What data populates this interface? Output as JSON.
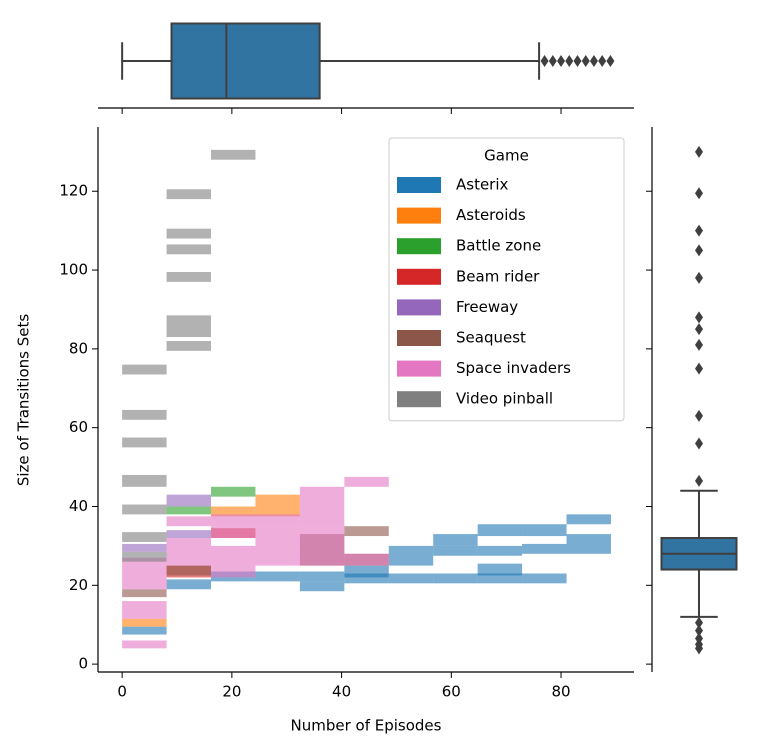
{
  "chart_data": [
    {
      "type": "hist2d",
      "xlabel": "Number of Episodes",
      "ylabel": "Size of Transitions Sets",
      "xlim": [
        -4.4,
        93.3
      ],
      "ylim": [
        -2,
        136.3
      ],
      "xticks": [
        0,
        20,
        40,
        60,
        80
      ],
      "yticks": [
        0,
        20,
        40,
        60,
        80,
        100,
        120
      ],
      "legend": {
        "title": "Game",
        "loc": "upper right"
      },
      "series": [
        {
          "name": "Asterix",
          "color": "#1f77b4",
          "cells": [
            {
              "x": [
                0,
                8.1
              ],
              "y": [
                7.5,
                9.5
              ]
            },
            {
              "x": [
                8.1,
                16.2
              ],
              "y": [
                19,
                21.5
              ]
            },
            {
              "x": [
                16.2,
                24.3
              ],
              "y": [
                21,
                23.5
              ]
            },
            {
              "x": [
                24.3,
                32.4
              ],
              "y": [
                21,
                23.5
              ]
            },
            {
              "x": [
                32.4,
                40.5
              ],
              "y": [
                21,
                23.5
              ]
            },
            {
              "x": [
                32.4,
                40.5
              ],
              "y": [
                18.5,
                21
              ]
            },
            {
              "x": [
                40.5,
                48.6
              ],
              "y": [
                22,
                25
              ]
            },
            {
              "x": [
                40.5,
                48.6
              ],
              "y": [
                20.5,
                23
              ]
            },
            {
              "x": [
                48.6,
                56.7
              ],
              "y": [
                25,
                30
              ]
            },
            {
              "x": [
                48.6,
                56.7
              ],
              "y": [
                20.5,
                23
              ]
            },
            {
              "x": [
                56.7,
                64.8
              ],
              "y": [
                30,
                33
              ]
            },
            {
              "x": [
                56.7,
                64.8
              ],
              "y": [
                27.5,
                30
              ]
            },
            {
              "x": [
                56.7,
                64.8
              ],
              "y": [
                20.5,
                23
              ]
            },
            {
              "x": [
                64.8,
                72.9
              ],
              "y": [
                32.5,
                35.5
              ]
            },
            {
              "x": [
                64.8,
                72.9
              ],
              "y": [
                27.5,
                30
              ]
            },
            {
              "x": [
                64.8,
                72.9
              ],
              "y": [
                22.5,
                25.5
              ]
            },
            {
              "x": [
                64.8,
                72.9
              ],
              "y": [
                20.5,
                23
              ]
            },
            {
              "x": [
                72.9,
                81
              ],
              "y": [
                32.5,
                35.5
              ]
            },
            {
              "x": [
                72.9,
                81
              ],
              "y": [
                28,
                30.5
              ]
            },
            {
              "x": [
                72.9,
                81
              ],
              "y": [
                20.5,
                23
              ]
            },
            {
              "x": [
                81,
                89.1
              ],
              "y": [
                35.5,
                38
              ]
            },
            {
              "x": [
                81,
                89.1
              ],
              "y": [
                28,
                33
              ]
            }
          ]
        },
        {
          "name": "Asteroids",
          "color": "#ff7f0e",
          "cells": [
            {
              "x": [
                0,
                8.1
              ],
              "y": [
                9.5,
                11.5
              ]
            },
            {
              "x": [
                16.2,
                24.3
              ],
              "y": [
                37.5,
                40
              ]
            },
            {
              "x": [
                24.3,
                32.4
              ],
              "y": [
                40,
                43
              ]
            },
            {
              "x": [
                24.3,
                32.4
              ],
              "y": [
                37.5,
                40
              ]
            }
          ]
        },
        {
          "name": "Battle zone",
          "color": "#2ca02c",
          "cells": [
            {
              "x": [
                8.1,
                16.2
              ],
              "y": [
                38,
                40
              ]
            },
            {
              "x": [
                16.2,
                24.3
              ],
              "y": [
                42.5,
                45
              ]
            }
          ]
        },
        {
          "name": "Beam rider",
          "color": "#d62728",
          "cells": [
            {
              "x": [
                8.1,
                16.2
              ],
              "y": [
                22,
                25
              ]
            },
            {
              "x": [
                16.2,
                24.3
              ],
              "y": [
                32,
                34.5
              ]
            }
          ]
        },
        {
          "name": "Freeway",
          "color": "#9467bd",
          "cells": [
            {
              "x": [
                0,
                8.1
              ],
              "y": [
                28.5,
                30.5
              ]
            },
            {
              "x": [
                8.1,
                16.2
              ],
              "y": [
                40,
                43
              ]
            },
            {
              "x": [
                8.1,
                16.2
              ],
              "y": [
                32,
                34
              ]
            }
          ]
        },
        {
          "name": "Seaquest",
          "color": "#8c564b",
          "cells": [
            {
              "x": [
                0,
                8.1
              ],
              "y": [
                17,
                19
              ]
            },
            {
              "x": [
                8.1,
                16.2
              ],
              "y": [
                22.5,
                25
              ]
            },
            {
              "x": [
                32.4,
                40.5
              ],
              "y": [
                25,
                33
              ]
            },
            {
              "x": [
                40.5,
                48.6
              ],
              "y": [
                32.5,
                35
              ]
            },
            {
              "x": [
                40.5,
                48.6
              ],
              "y": [
                25,
                28
              ]
            }
          ]
        },
        {
          "name": "Space invaders",
          "color": "#e377c2",
          "cells": [
            {
              "x": [
                0,
                8.1
              ],
              "y": [
                4,
                6
              ]
            },
            {
              "x": [
                0,
                8.1
              ],
              "y": [
                11.5,
                13.5
              ]
            },
            {
              "x": [
                0,
                8.1
              ],
              "y": [
                13.5,
                16
              ]
            },
            {
              "x": [
                0,
                8.1
              ],
              "y": [
                19,
                22
              ]
            },
            {
              "x": [
                0,
                8.1
              ],
              "y": [
                22,
                25
              ]
            },
            {
              "x": [
                0,
                8.1
              ],
              "y": [
                25,
                27
              ]
            },
            {
              "x": [
                8.1,
                16.2
              ],
              "y": [
                25,
                30
              ]
            },
            {
              "x": [
                8.1,
                16.2
              ],
              "y": [
                30,
                32
              ]
            },
            {
              "x": [
                8.1,
                16.2
              ],
              "y": [
                35,
                37.5
              ]
            },
            {
              "x": [
                16.2,
                24.3
              ],
              "y": [
                22,
                25
              ]
            },
            {
              "x": [
                16.2,
                24.3
              ],
              "y": [
                25,
                30
              ]
            },
            {
              "x": [
                16.2,
                24.3
              ],
              "y": [
                32,
                35
              ]
            },
            {
              "x": [
                16.2,
                24.3
              ],
              "y": [
                35,
                38
              ]
            },
            {
              "x": [
                24.3,
                32.4
              ],
              "y": [
                25,
                30
              ]
            },
            {
              "x": [
                24.3,
                32.4
              ],
              "y": [
                30,
                35
              ]
            },
            {
              "x": [
                24.3,
                32.4
              ],
              "y": [
                35,
                38
              ]
            },
            {
              "x": [
                32.4,
                40.5
              ],
              "y": [
                25,
                28
              ]
            },
            {
              "x": [
                32.4,
                40.5
              ],
              "y": [
                28,
                32
              ]
            },
            {
              "x": [
                32.4,
                40.5
              ],
              "y": [
                32,
                35
              ]
            },
            {
              "x": [
                32.4,
                40.5
              ],
              "y": [
                35,
                38
              ]
            },
            {
              "x": [
                32.4,
                40.5
              ],
              "y": [
                38,
                45
              ]
            },
            {
              "x": [
                40.5,
                48.6
              ],
              "y": [
                45,
                47.5
              ]
            },
            {
              "x": [
                40.5,
                48.6
              ],
              "y": [
                25,
                28
              ]
            }
          ]
        },
        {
          "name": "Video pinball",
          "color": "#7f7f7f",
          "cells": [
            {
              "x": [
                0,
                8.1
              ],
              "y": [
                73.5,
                76
              ]
            },
            {
              "x": [
                0,
                8.1
              ],
              "y": [
                62,
                64.5
              ]
            },
            {
              "x": [
                0,
                8.1
              ],
              "y": [
                55,
                57.5
              ]
            },
            {
              "x": [
                0,
                8.1
              ],
              "y": [
                45,
                48
              ]
            },
            {
              "x": [
                0,
                8.1
              ],
              "y": [
                38,
                40.5
              ]
            },
            {
              "x": [
                0,
                8.1
              ],
              "y": [
                31,
                33.5
              ]
            },
            {
              "x": [
                0,
                8.1
              ],
              "y": [
                26,
                28.5
              ]
            },
            {
              "x": [
                8.1,
                16.2
              ],
              "y": [
                118,
                120.5
              ]
            },
            {
              "x": [
                8.1,
                16.2
              ],
              "y": [
                108,
                110.5
              ]
            },
            {
              "x": [
                8.1,
                16.2
              ],
              "y": [
                104,
                106.5
              ]
            },
            {
              "x": [
                8.1,
                16.2
              ],
              "y": [
                97,
                99.5
              ]
            },
            {
              "x": [
                8.1,
                16.2
              ],
              "y": [
                83,
                88.5
              ]
            },
            {
              "x": [
                8.1,
                16.2
              ],
              "y": [
                79.5,
                82
              ]
            },
            {
              "x": [
                16.2,
                24.3
              ],
              "y": [
                128,
                130.5
              ]
            }
          ]
        }
      ]
    },
    {
      "type": "box",
      "orient": "horizontal",
      "color": "#3274a1",
      "q1": 9,
      "median": 19,
      "q3": 36,
      "whislo": 0,
      "whishi": 76,
      "outliers": [
        77,
        78.5,
        80,
        81.5,
        83,
        84.5,
        86,
        87.5,
        89
      ]
    },
    {
      "type": "box",
      "orient": "vertical",
      "color": "#3274a1",
      "q1": 24,
      "median": 28,
      "q3": 32,
      "whislo": 12,
      "whishi": 44,
      "outliers": [
        4,
        5,
        6.5,
        8.5,
        10.5,
        46.5,
        56,
        63,
        75,
        81,
        85,
        88,
        98,
        105,
        110,
        119.5,
        130
      ]
    }
  ]
}
